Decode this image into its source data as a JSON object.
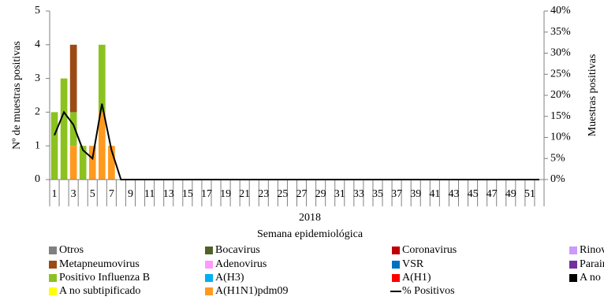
{
  "chart_data": {
    "type": "bar",
    "x_label_group": "2018",
    "xlabel": "Semana epidemiológica",
    "ylabel": "Nº de muestras positivas",
    "y2label": "Muestras positivas",
    "categories": [
      1,
      null,
      3,
      null,
      5,
      null,
      7,
      null,
      9,
      null,
      11,
      null,
      13,
      null,
      15,
      null,
      17,
      null,
      19,
      null,
      21,
      null,
      23,
      null,
      25,
      null,
      27,
      null,
      29,
      null,
      31,
      null,
      33,
      null,
      35,
      null,
      37,
      null,
      39,
      null,
      41,
      null,
      43,
      null,
      45,
      null,
      47,
      null,
      49,
      null,
      51,
      null
    ],
    "ylim": [
      0,
      5
    ],
    "yticks": [
      0,
      1,
      2,
      3,
      4,
      5
    ],
    "y2lim": [
      0,
      40
    ],
    "y2ticks": [
      {
        "value": 0,
        "label": "0%"
      },
      {
        "value": 5,
        "label": "5%"
      },
      {
        "value": 10,
        "label": "10%"
      },
      {
        "value": 15,
        "label": "15%"
      },
      {
        "value": 20,
        "label": "20%"
      },
      {
        "value": 25,
        "label": "25%"
      },
      {
        "value": 30,
        "label": "30%"
      },
      {
        "value": 35,
        "label": "35%"
      },
      {
        "value": 40,
        "label": "40%"
      }
    ],
    "series": [
      {
        "name": "Otros",
        "color": "#808080",
        "values": [
          0,
          0,
          0,
          0,
          0,
          0,
          0,
          0,
          0,
          0,
          0,
          0,
          0,
          0,
          0,
          0,
          0,
          0,
          0,
          0,
          0,
          0,
          0,
          0,
          0,
          0,
          0,
          0,
          0,
          0,
          0,
          0,
          0,
          0,
          0,
          0,
          0,
          0,
          0,
          0,
          0,
          0,
          0,
          0,
          0,
          0,
          0,
          0,
          0,
          0,
          0,
          0
        ]
      },
      {
        "name": "Bocavirus",
        "color": "#4f6228",
        "values": [
          0,
          0,
          0,
          0,
          0,
          0,
          0,
          0,
          0,
          0,
          0,
          0,
          0,
          0,
          0,
          0,
          0,
          0,
          0,
          0,
          0,
          0,
          0,
          0,
          0,
          0,
          0,
          0,
          0,
          0,
          0,
          0,
          0,
          0,
          0,
          0,
          0,
          0,
          0,
          0,
          0,
          0,
          0,
          0,
          0,
          0,
          0,
          0,
          0,
          0,
          0,
          0
        ]
      },
      {
        "name": "Coronavirus",
        "color": "#c00000",
        "values": [
          0,
          0,
          0,
          0,
          0,
          0,
          0,
          0,
          0,
          0,
          0,
          0,
          0,
          0,
          0,
          0,
          0,
          0,
          0,
          0,
          0,
          0,
          0,
          0,
          0,
          0,
          0,
          0,
          0,
          0,
          0,
          0,
          0,
          0,
          0,
          0,
          0,
          0,
          0,
          0,
          0,
          0,
          0,
          0,
          0,
          0,
          0,
          0,
          0,
          0,
          0,
          0
        ]
      },
      {
        "name": "Rinovirus",
        "color": "#cc99ff",
        "values": [
          0,
          0,
          0,
          0,
          0,
          0,
          0,
          0,
          0,
          0,
          0,
          0,
          0,
          0,
          0,
          0,
          0,
          0,
          0,
          0,
          0,
          0,
          0,
          0,
          0,
          0,
          0,
          0,
          0,
          0,
          0,
          0,
          0,
          0,
          0,
          0,
          0,
          0,
          0,
          0,
          0,
          0,
          0,
          0,
          0,
          0,
          0,
          0,
          0,
          0,
          0,
          0
        ]
      },
      {
        "name": "Metapneumovirus",
        "color": "#9c4a14",
        "values": [
          0,
          0,
          2,
          0,
          0,
          0,
          0,
          0,
          0,
          0,
          0,
          0,
          0,
          0,
          0,
          0,
          0,
          0,
          0,
          0,
          0,
          0,
          0,
          0,
          0,
          0,
          0,
          0,
          0,
          0,
          0,
          0,
          0,
          0,
          0,
          0,
          0,
          0,
          0,
          0,
          0,
          0,
          0,
          0,
          0,
          0,
          0,
          0,
          0,
          0,
          0,
          0
        ]
      },
      {
        "name": "Adenovirus",
        "color": "#ff99ff",
        "values": [
          0,
          0,
          0,
          0,
          0,
          0,
          0,
          0,
          0,
          0,
          0,
          0,
          0,
          0,
          0,
          0,
          0,
          0,
          0,
          0,
          0,
          0,
          0,
          0,
          0,
          0,
          0,
          0,
          0,
          0,
          0,
          0,
          0,
          0,
          0,
          0,
          0,
          0,
          0,
          0,
          0,
          0,
          0,
          0,
          0,
          0,
          0,
          0,
          0,
          0,
          0,
          0
        ]
      },
      {
        "name": "VSR",
        "color": "#0070c0",
        "values": [
          0,
          0,
          0,
          0,
          0,
          0,
          0,
          0,
          0,
          0,
          0,
          0,
          0,
          0,
          0,
          0,
          0,
          0,
          0,
          0,
          0,
          0,
          0,
          0,
          0,
          0,
          0,
          0,
          0,
          0,
          0,
          0,
          0,
          0,
          0,
          0,
          0,
          0,
          0,
          0,
          0,
          0,
          0,
          0,
          0,
          0,
          0,
          0,
          0,
          0,
          0,
          0
        ]
      },
      {
        "name": "Parainfluenza",
        "color": "#7030a0",
        "values": [
          0,
          0,
          0,
          0,
          0,
          0,
          0,
          0,
          0,
          0,
          0,
          0,
          0,
          0,
          0,
          0,
          0,
          0,
          0,
          0,
          0,
          0,
          0,
          0,
          0,
          0,
          0,
          0,
          0,
          0,
          0,
          0,
          0,
          0,
          0,
          0,
          0,
          0,
          0,
          0,
          0,
          0,
          0,
          0,
          0,
          0,
          0,
          0,
          0,
          0,
          0,
          0
        ]
      },
      {
        "name": "Positivo Influenza  B",
        "color": "#8cc220",
        "values": [
          2,
          3,
          1,
          1,
          0,
          2,
          0,
          0,
          0,
          0,
          0,
          0,
          0,
          0,
          0,
          0,
          0,
          0,
          0,
          0,
          0,
          0,
          0,
          0,
          0,
          0,
          0,
          0,
          0,
          0,
          0,
          0,
          0,
          0,
          0,
          0,
          0,
          0,
          0,
          0,
          0,
          0,
          0,
          0,
          0,
          0,
          0,
          0,
          0,
          0,
          0,
          0
        ]
      },
      {
        "name": "A(H3)",
        "color": "#00b0f0",
        "values": [
          0,
          0,
          0,
          0,
          0,
          0,
          0,
          0,
          0,
          0,
          0,
          0,
          0,
          0,
          0,
          0,
          0,
          0,
          0,
          0,
          0,
          0,
          0,
          0,
          0,
          0,
          0,
          0,
          0,
          0,
          0,
          0,
          0,
          0,
          0,
          0,
          0,
          0,
          0,
          0,
          0,
          0,
          0,
          0,
          0,
          0,
          0,
          0,
          0,
          0,
          0,
          0
        ]
      },
      {
        "name": "A(H1)",
        "color": "#ff0000",
        "values": [
          0,
          0,
          0,
          0,
          0,
          0,
          0,
          0,
          0,
          0,
          0,
          0,
          0,
          0,
          0,
          0,
          0,
          0,
          0,
          0,
          0,
          0,
          0,
          0,
          0,
          0,
          0,
          0,
          0,
          0,
          0,
          0,
          0,
          0,
          0,
          0,
          0,
          0,
          0,
          0,
          0,
          0,
          0,
          0,
          0,
          0,
          0,
          0,
          0,
          0,
          0,
          0
        ]
      },
      {
        "name": "A no subtipificable",
        "color": "#000000",
        "values": [
          0,
          0,
          0,
          0,
          0,
          0,
          0,
          0,
          0,
          0,
          0,
          0,
          0,
          0,
          0,
          0,
          0,
          0,
          0,
          0,
          0,
          0,
          0,
          0,
          0,
          0,
          0,
          0,
          0,
          0,
          0,
          0,
          0,
          0,
          0,
          0,
          0,
          0,
          0,
          0,
          0,
          0,
          0,
          0,
          0,
          0,
          0,
          0,
          0,
          0,
          0,
          0
        ]
      },
      {
        "name": "A no subtipificado",
        "color": "#ffff00",
        "values": [
          0,
          0,
          0,
          0,
          0,
          0,
          0,
          0,
          0,
          0,
          0,
          0,
          0,
          0,
          0,
          0,
          0,
          0,
          0,
          0,
          0,
          0,
          0,
          0,
          0,
          0,
          0,
          0,
          0,
          0,
          0,
          0,
          0,
          0,
          0,
          0,
          0,
          0,
          0,
          0,
          0,
          0,
          0,
          0,
          0,
          0,
          0,
          0,
          0,
          0,
          0,
          0
        ]
      },
      {
        "name": "A(H1N1)pdm09",
        "color": "#ff9a1f",
        "values": [
          0,
          0,
          1,
          0,
          1,
          2,
          1,
          0,
          0,
          0,
          0,
          0,
          0,
          0,
          0,
          0,
          0,
          0,
          0,
          0,
          0,
          0,
          0,
          0,
          0,
          0,
          0,
          0,
          0,
          0,
          0,
          0,
          0,
          0,
          0,
          0,
          0,
          0,
          0,
          0,
          0,
          0,
          0,
          0,
          0,
          0,
          0,
          0,
          0,
          0,
          0,
          0
        ]
      },
      {
        "name": "% Positivos",
        "color": "#000000",
        "type": "line",
        "axis": "y2",
        "values": [
          10.5,
          16,
          13,
          7,
          5,
          18,
          7,
          0,
          0,
          0,
          0,
          0,
          0,
          0,
          0,
          0,
          0,
          0,
          0,
          0,
          0,
          0,
          0,
          0,
          0,
          0,
          0,
          0,
          0,
          0,
          0,
          0,
          0,
          0,
          0,
          0,
          0,
          0,
          0,
          0,
          0,
          0,
          0,
          0,
          0,
          0,
          0,
          0,
          0,
          0,
          0,
          0
        ]
      }
    ]
  }
}
